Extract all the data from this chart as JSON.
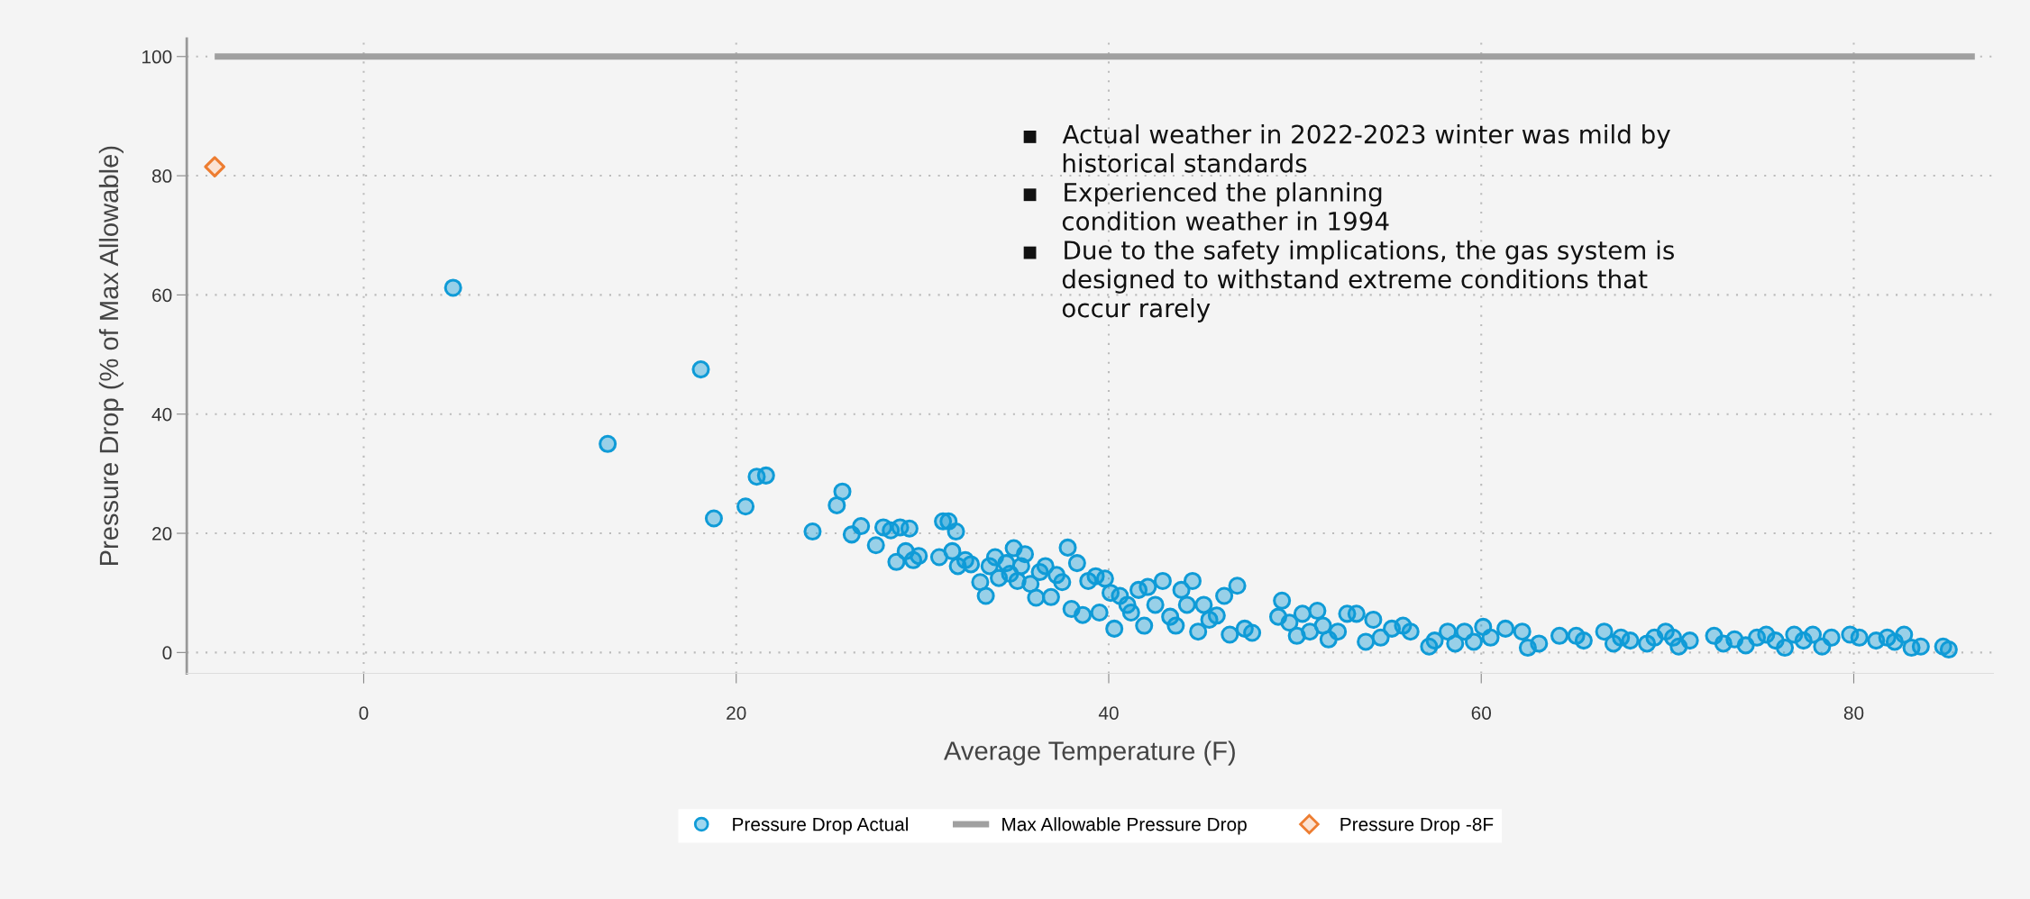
{
  "chart_data": {
    "type": "scatter",
    "xlabel": "Average Temperature (F)",
    "ylabel": "Pressure Drop (% of Max Allowable)",
    "xlim": [
      -9.5,
      87.5
    ],
    "ylim": [
      -3.5,
      103
    ],
    "xticks": [
      0,
      20,
      40,
      60,
      80
    ],
    "yticks": [
      0,
      20,
      40,
      60,
      80,
      100
    ],
    "grid": true,
    "legend": "bottom",
    "annotations": [
      "▪   Actual weather in 2022-2023 winter was mild by\n     historical standards\n▪   Experienced the planning\n     condition weather in 1994\n▪   Due to the safety implications, the gas system is\n     designed to withstand extreme conditions that\n     occur rarely"
    ],
    "series": [
      {
        "name": "Pressure Drop Actual",
        "marker": "circle",
        "color": "#0f9bd7",
        "x": [
          4.8,
          13.1,
          18.1,
          18.8,
          20.5,
          21.1,
          21.6,
          24.1,
          25.4,
          25.7,
          26.2,
          26.7,
          27.5,
          27.9,
          28.3,
          28.6,
          28.8,
          29.1,
          29.3,
          29.5,
          29.8,
          30.9,
          31.1,
          31.4,
          31.6,
          31.8,
          31.9,
          32.3,
          32.6,
          33.1,
          33.4,
          33.6,
          33.9,
          34.1,
          34.5,
          34.7,
          34.9,
          35.1,
          35.3,
          35.5,
          35.8,
          36.1,
          36.3,
          36.6,
          36.9,
          37.2,
          37.5,
          37.8,
          38.0,
          38.3,
          38.6,
          38.9,
          39.3,
          39.5,
          39.8,
          40.1,
          40.3,
          40.6,
          41.0,
          41.2,
          41.6,
          41.9,
          42.1,
          42.5,
          42.9,
          43.3,
          43.6,
          43.9,
          44.2,
          44.5,
          44.8,
          45.1,
          45.4,
          45.8,
          46.2,
          46.5,
          46.9,
          47.3,
          47.7,
          49.1,
          49.3,
          49.7,
          50.1,
          50.4,
          50.8,
          51.2,
          51.5,
          51.8,
          52.3,
          52.8,
          53.3,
          53.8,
          54.2,
          54.6,
          55.2,
          55.8,
          56.2,
          57.2,
          57.5,
          58.2,
          58.6,
          59.1,
          59.6,
          60.1,
          60.5,
          61.3,
          62.2,
          62.5,
          63.1,
          64.2,
          65.1,
          65.5,
          66.6,
          67.1,
          67.5,
          68.0,
          68.9,
          69.3,
          69.9,
          70.3,
          70.6,
          71.2,
          72.5,
          73.0,
          73.6,
          74.2,
          74.8,
          75.3,
          75.8,
          76.3,
          76.8,
          77.3,
          77.8,
          78.3,
          78.8,
          79.8,
          80.3,
          81.2,
          81.8,
          82.2,
          82.7,
          83.1,
          83.6,
          84.8,
          85.1
        ],
        "values": [
          61.2,
          35,
          47.5,
          22.5,
          24.5,
          29.5,
          29.7,
          20.3,
          24.7,
          27,
          19.8,
          21.2,
          18,
          21,
          20.5,
          15.2,
          21,
          17,
          20.8,
          15.5,
          16.2,
          16,
          22,
          22,
          17,
          20.3,
          14.5,
          15.5,
          14.8,
          11.8,
          9.5,
          14.5,
          16,
          12.5,
          15,
          13.2,
          17.5,
          12,
          14.5,
          16.5,
          11.5,
          9.2,
          13.5,
          14.5,
          9.3,
          13,
          11.8,
          17.6,
          7.3,
          15,
          6.3,
          12,
          12.8,
          6.7,
          12.4,
          10,
          4,
          9.5,
          8,
          6.7,
          10.5,
          4.5,
          11,
          8,
          12,
          6,
          4.5,
          10.5,
          8,
          12,
          3.5,
          8,
          5.5,
          6.2,
          9.5,
          3,
          11.2,
          4,
          3.3,
          6,
          8.7,
          5,
          2.8,
          6.5,
          3.5,
          7,
          4.5,
          2.2,
          3.5,
          6.5,
          6.5,
          1.8,
          5.5,
          2.5,
          4,
          4.5,
          3.5,
          1,
          2,
          3.5,
          1.5,
          3.5,
          1.8,
          4.3,
          2.5,
          4,
          3.5,
          0.8,
          1.5,
          2.8,
          2.8,
          2,
          3.5,
          1.5,
          2.5,
          2,
          1.5,
          2.5,
          3.5,
          2.5,
          1,
          2,
          2.8,
          1.5,
          2.2,
          1.2,
          2.5,
          3,
          2,
          0.8,
          3,
          2,
          3,
          1,
          2.5,
          3,
          2.5,
          2,
          2.5,
          1.8,
          3,
          0.8,
          1,
          1,
          0.5
        ]
      },
      {
        "name": "Max Allowable Pressure Drop",
        "type": "line",
        "marker": "none",
        "color": "#a0a0a0",
        "x": [
          -8,
          86.5
        ],
        "values": [
          100,
          100
        ]
      },
      {
        "name": "Pressure Drop -8F",
        "marker": "diamond",
        "color": "#ed7d31",
        "x": [
          -8
        ],
        "values": [
          81.5
        ]
      }
    ]
  }
}
